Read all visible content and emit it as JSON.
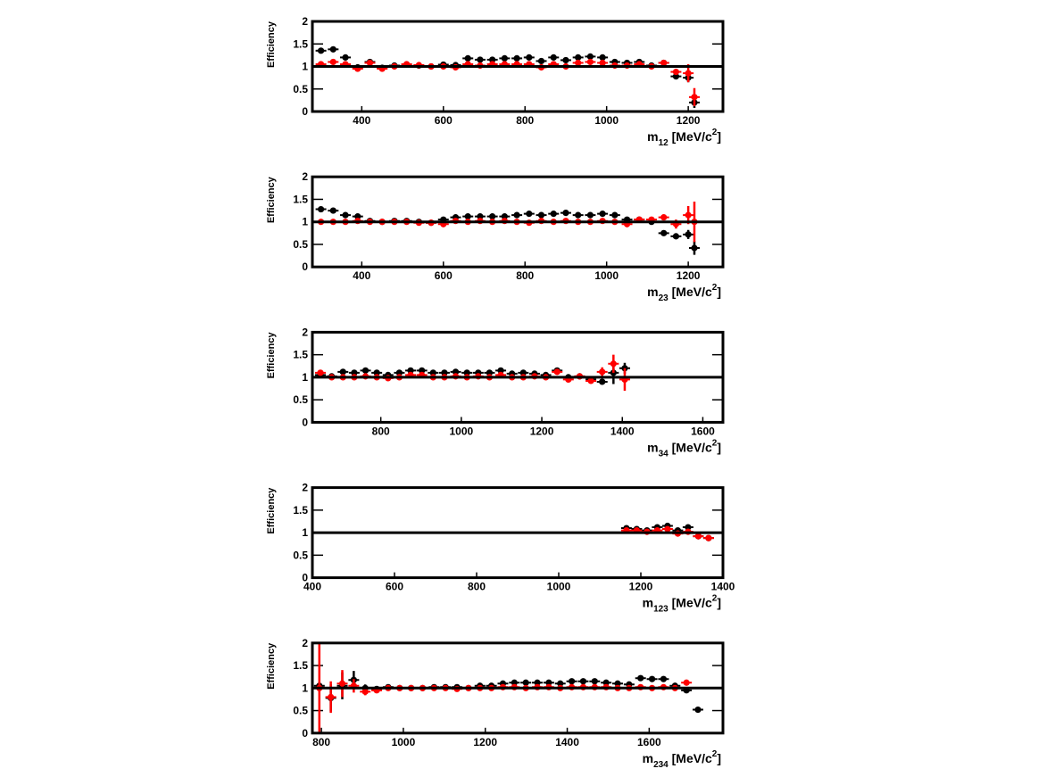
{
  "chart_data": [
    {
      "type": "errorbar",
      "ylabel": "Efficiency",
      "xlabel": [
        "m",
        "12",
        " [MeV/c",
        "2",
        "]"
      ],
      "xlim": [
        279,
        1285
      ],
      "xticks": [
        400,
        600,
        800,
        1000,
        1200
      ],
      "ylim": [
        0,
        2
      ],
      "yticks": [
        0,
        0.5,
        1,
        1.5,
        2
      ],
      "reference_line": 1,
      "x": [
        300,
        330,
        360,
        390,
        420,
        450,
        480,
        510,
        540,
        570,
        600,
        630,
        660,
        690,
        720,
        750,
        780,
        810,
        840,
        870,
        900,
        930,
        960,
        990,
        1020,
        1050,
        1080,
        1110,
        1140,
        1170,
        1200,
        1215
      ],
      "series": [
        {
          "color": "#000000",
          "values": [
            1.35,
            1.38,
            1.2,
            0.98,
            1.1,
            0.97,
            1.02,
            1.04,
            1.02,
            1.0,
            1.04,
            1.03,
            1.18,
            1.15,
            1.15,
            1.18,
            1.18,
            1.2,
            1.12,
            1.2,
            1.14,
            1.2,
            1.22,
            1.2,
            1.1,
            1.08,
            1.1,
            1.02,
            1.08,
            0.78,
            0.75,
            0.2
          ],
          "errors": [
            0.05,
            0.05,
            0.04,
            0.04,
            0.04,
            0.03,
            0.03,
            0.03,
            0.03,
            0.03,
            0.03,
            0.03,
            0.03,
            0.03,
            0.03,
            0.03,
            0.03,
            0.03,
            0.03,
            0.03,
            0.03,
            0.03,
            0.03,
            0.03,
            0.03,
            0.03,
            0.03,
            0.03,
            0.04,
            0.06,
            0.1,
            0.12
          ]
        },
        {
          "color": "#ff0000",
          "values": [
            1.05,
            1.1,
            1.05,
            0.95,
            1.08,
            0.95,
            1.0,
            1.05,
            1.03,
            1.0,
            1.0,
            0.98,
            1.05,
            1.02,
            1.05,
            1.05,
            1.05,
            1.05,
            0.98,
            1.05,
            1.0,
            1.08,
            1.1,
            1.08,
            1.02,
            1.02,
            1.05,
            1.0,
            1.08,
            0.88,
            0.85,
            0.32
          ],
          "errors": [
            0.03,
            0.03,
            0.03,
            0.03,
            0.03,
            0.03,
            0.03,
            0.03,
            0.03,
            0.03,
            0.03,
            0.03,
            0.03,
            0.03,
            0.03,
            0.03,
            0.03,
            0.03,
            0.03,
            0.03,
            0.03,
            0.03,
            0.03,
            0.03,
            0.03,
            0.03,
            0.03,
            0.03,
            0.04,
            0.06,
            0.2,
            0.2
          ]
        }
      ]
    },
    {
      "type": "errorbar",
      "ylabel": "Efficiency",
      "xlabel": [
        "m",
        "23",
        " [MeV/c",
        "2",
        "]"
      ],
      "xlim": [
        279,
        1285
      ],
      "xticks": [
        400,
        600,
        800,
        1000,
        1200
      ],
      "ylim": [
        0,
        2
      ],
      "yticks": [
        0,
        0.5,
        1,
        1.5,
        2
      ],
      "reference_line": 1,
      "x": [
        300,
        330,
        360,
        390,
        420,
        450,
        480,
        510,
        540,
        570,
        600,
        630,
        660,
        690,
        720,
        750,
        780,
        810,
        840,
        870,
        900,
        930,
        960,
        990,
        1020,
        1050,
        1080,
        1110,
        1140,
        1170,
        1200,
        1215
      ],
      "series": [
        {
          "color": "#000000",
          "values": [
            1.28,
            1.25,
            1.15,
            1.12,
            1.02,
            1.0,
            1.02,
            1.02,
            1.0,
            0.98,
            1.05,
            1.1,
            1.12,
            1.12,
            1.12,
            1.12,
            1.15,
            1.18,
            1.15,
            1.18,
            1.2,
            1.15,
            1.15,
            1.18,
            1.15,
            1.05,
            1.05,
            1.0,
            0.75,
            0.68,
            0.72,
            0.42
          ],
          "errors": [
            0.05,
            0.05,
            0.04,
            0.04,
            0.04,
            0.03,
            0.03,
            0.03,
            0.03,
            0.03,
            0.03,
            0.03,
            0.03,
            0.03,
            0.03,
            0.03,
            0.03,
            0.03,
            0.03,
            0.03,
            0.03,
            0.03,
            0.03,
            0.03,
            0.03,
            0.03,
            0.03,
            0.03,
            0.05,
            0.06,
            0.1,
            0.15
          ]
        },
        {
          "color": "#ff0000",
          "values": [
            1.0,
            1.0,
            1.0,
            1.02,
            1.0,
            1.0,
            1.0,
            1.0,
            0.98,
            0.98,
            0.95,
            1.02,
            1.0,
            1.02,
            1.0,
            1.02,
            1.0,
            0.98,
            1.02,
            1.0,
            1.02,
            1.0,
            1.0,
            1.02,
            1.0,
            0.95,
            1.05,
            1.05,
            1.1,
            0.95,
            1.15,
            1.0
          ],
          "errors": [
            0.03,
            0.03,
            0.03,
            0.03,
            0.03,
            0.03,
            0.03,
            0.03,
            0.03,
            0.03,
            0.03,
            0.03,
            0.03,
            0.03,
            0.03,
            0.03,
            0.03,
            0.03,
            0.03,
            0.03,
            0.03,
            0.03,
            0.03,
            0.03,
            0.03,
            0.03,
            0.03,
            0.03,
            0.06,
            0.1,
            0.2,
            0.45
          ]
        }
      ]
    },
    {
      "type": "errorbar",
      "ylabel": "Efficiency",
      "xlabel": [
        "m",
        "34",
        " [MeV/c",
        "2",
        "]"
      ],
      "xlim": [
        630,
        1650
      ],
      "xticks": [
        800,
        1000,
        1200,
        1400,
        1600
      ],
      "ylim": [
        0,
        2
      ],
      "yticks": [
        0,
        0.5,
        1,
        1.5,
        2
      ],
      "reference_line": 1,
      "x": [
        650,
        678,
        706,
        734,
        762,
        790,
        818,
        846,
        874,
        902,
        930,
        958,
        986,
        1014,
        1042,
        1070,
        1098,
        1126,
        1154,
        1182,
        1210,
        1238,
        1266,
        1294,
        1322,
        1350,
        1378,
        1406
      ],
      "series": [
        {
          "color": "#000000",
          "values": [
            1.05,
            1.02,
            1.12,
            1.1,
            1.15,
            1.1,
            1.05,
            1.1,
            1.15,
            1.15,
            1.1,
            1.1,
            1.12,
            1.1,
            1.1,
            1.1,
            1.15,
            1.08,
            1.1,
            1.08,
            1.05,
            1.15,
            1.0,
            1.02,
            0.95,
            0.9,
            1.1,
            1.2
          ],
          "errors": [
            0.03,
            0.03,
            0.03,
            0.03,
            0.03,
            0.03,
            0.03,
            0.03,
            0.03,
            0.03,
            0.03,
            0.03,
            0.03,
            0.03,
            0.03,
            0.03,
            0.03,
            0.03,
            0.03,
            0.03,
            0.03,
            0.03,
            0.03,
            0.03,
            0.04,
            0.05,
            0.25,
            0.12
          ]
        },
        {
          "color": "#ff0000",
          "values": [
            1.1,
            1.0,
            1.0,
            1.0,
            1.02,
            1.0,
            0.98,
            1.0,
            1.05,
            1.05,
            1.0,
            1.0,
            1.02,
            1.0,
            1.02,
            1.0,
            1.05,
            1.0,
            1.0,
            1.02,
            1.0,
            1.12,
            0.95,
            1.02,
            0.92,
            1.12,
            1.3,
            0.95
          ],
          "errors": [
            0.03,
            0.03,
            0.03,
            0.03,
            0.03,
            0.03,
            0.03,
            0.03,
            0.03,
            0.03,
            0.03,
            0.03,
            0.03,
            0.03,
            0.03,
            0.03,
            0.03,
            0.03,
            0.03,
            0.03,
            0.03,
            0.03,
            0.03,
            0.03,
            0.04,
            0.1,
            0.2,
            0.25
          ]
        }
      ]
    },
    {
      "type": "errorbar",
      "ylabel": "Efficiency",
      "xlabel": [
        "m",
        "123",
        " [MeV/c",
        "2",
        "]"
      ],
      "xlim": [
        400,
        1400
      ],
      "xticks": [
        400,
        600,
        800,
        1000,
        1200,
        1400
      ],
      "ylim": [
        0,
        2
      ],
      "yticks": [
        0,
        0.5,
        1,
        1.5,
        2
      ],
      "reference_line": 1,
      "x": [
        1165,
        1190,
        1215,
        1240,
        1265,
        1290,
        1315,
        1340,
        1365
      ],
      "series": [
        {
          "color": "#000000",
          "values": [
            1.1,
            1.08,
            1.05,
            1.12,
            1.15,
            1.05,
            1.12,
            0.92,
            0.88
          ],
          "errors": [
            0.03,
            0.03,
            0.03,
            0.03,
            0.03,
            0.03,
            0.03,
            0.03,
            0.03
          ]
        },
        {
          "color": "#ff0000",
          "values": [
            1.05,
            1.05,
            1.02,
            1.05,
            1.08,
            0.98,
            1.02,
            0.92,
            0.88
          ],
          "errors": [
            0.03,
            0.03,
            0.03,
            0.03,
            0.03,
            0.03,
            0.03,
            0.03,
            0.03
          ]
        }
      ]
    },
    {
      "type": "errorbar",
      "ylabel": "Efficiency",
      "xlabel": [
        "m",
        "234",
        " [MeV/c",
        "2",
        "]"
      ],
      "xlim": [
        778,
        1780
      ],
      "xticks": [
        800,
        1000,
        1200,
        1400,
        1600
      ],
      "ylim": [
        0,
        2
      ],
      "yticks": [
        0,
        0.5,
        1,
        1.5,
        2
      ],
      "reference_line": 1,
      "x": [
        795,
        823,
        851,
        879,
        907,
        935,
        963,
        991,
        1019,
        1047,
        1075,
        1103,
        1131,
        1159,
        1187,
        1215,
        1243,
        1271,
        1299,
        1327,
        1355,
        1383,
        1411,
        1439,
        1467,
        1495,
        1523,
        1551,
        1579,
        1607,
        1635,
        1663,
        1691,
        1719
      ],
      "series": [
        {
          "color": "#000000",
          "values": [
            1.05,
            0.78,
            1.05,
            1.18,
            1.0,
            0.98,
            1.02,
            1.0,
            1.0,
            1.0,
            1.02,
            1.02,
            1.02,
            1.0,
            1.05,
            1.05,
            1.1,
            1.12,
            1.12,
            1.12,
            1.12,
            1.1,
            1.15,
            1.15,
            1.15,
            1.12,
            1.1,
            1.08,
            1.22,
            1.2,
            1.2,
            1.05,
            0.95,
            0.52
          ],
          "errors": [
            0.05,
            0.3,
            0.3,
            0.2,
            0.08,
            0.05,
            0.03,
            0.03,
            0.03,
            0.03,
            0.03,
            0.03,
            0.03,
            0.03,
            0.03,
            0.03,
            0.03,
            0.03,
            0.03,
            0.03,
            0.03,
            0.03,
            0.03,
            0.03,
            0.03,
            0.03,
            0.03,
            0.03,
            0.03,
            0.03,
            0.03,
            0.03,
            0.04,
            0.03
          ]
        },
        {
          "color": "#ff0000",
          "values": [
            1.0,
            0.8,
            1.1,
            1.05,
            0.92,
            0.95,
            1.0,
            1.0,
            1.0,
            1.0,
            1.0,
            1.0,
            0.98,
            1.0,
            1.0,
            1.0,
            1.02,
            1.02,
            1.0,
            1.02,
            1.02,
            1.0,
            1.02,
            1.02,
            1.02,
            1.02,
            1.0,
            1.0,
            1.02,
            1.0,
            1.02,
            1.0,
            1.12,
            null
          ],
          "errors": [
            1.2,
            0.35,
            0.3,
            0.15,
            0.08,
            0.05,
            0.03,
            0.03,
            0.03,
            0.03,
            0.03,
            0.03,
            0.03,
            0.03,
            0.03,
            0.03,
            0.03,
            0.03,
            0.03,
            0.03,
            0.03,
            0.03,
            0.03,
            0.03,
            0.03,
            0.03,
            0.03,
            0.03,
            0.03,
            0.03,
            0.03,
            0.03,
            0.05,
            null
          ]
        }
      ]
    }
  ]
}
